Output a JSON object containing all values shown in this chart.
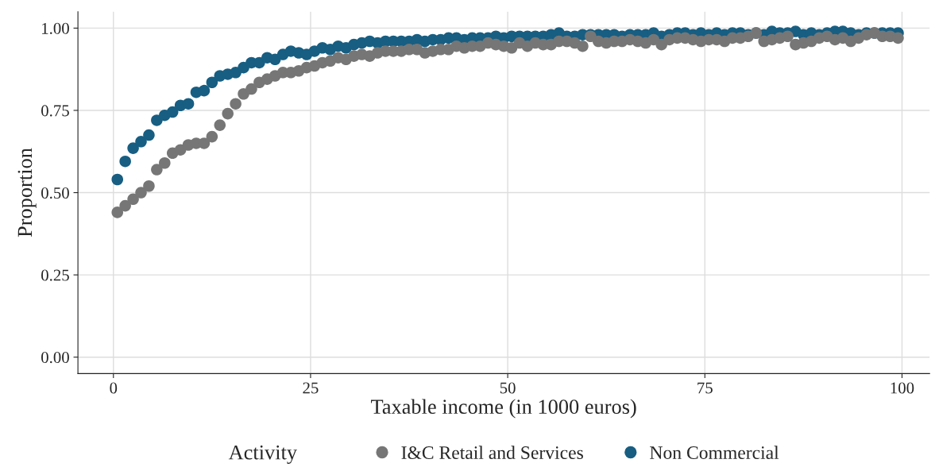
{
  "chart_data": {
    "type": "scatter",
    "xlabel": "Taxable income (in 1000 euros)",
    "ylabel": "Proportion",
    "legend_title": "Activity",
    "legend": "bottom",
    "grid": true,
    "marker": "circle",
    "x": [
      0.5,
      1.5,
      2.5,
      3.5,
      4.5,
      5.5,
      6.5,
      7.5,
      8.5,
      9.5,
      10.5,
      11.5,
      12.5,
      13.5,
      14.5,
      15.5,
      16.5,
      17.5,
      18.5,
      19.5,
      20.5,
      21.5,
      22.5,
      23.5,
      24.5,
      25.5,
      26.5,
      27.5,
      28.5,
      29.5,
      30.5,
      31.5,
      32.5,
      33.5,
      34.5,
      35.5,
      36.5,
      37.5,
      38.5,
      39.5,
      40.5,
      41.5,
      42.5,
      43.5,
      44.5,
      45.5,
      46.5,
      47.5,
      48.5,
      49.5,
      50.5,
      51.5,
      52.5,
      53.5,
      54.5,
      55.5,
      56.5,
      57.5,
      58.5,
      59.5,
      60.5,
      61.5,
      62.5,
      63.5,
      64.5,
      65.5,
      66.5,
      67.5,
      68.5,
      69.5,
      70.5,
      71.5,
      72.5,
      73.5,
      74.5,
      75.5,
      76.5,
      77.5,
      78.5,
      79.5,
      80.5,
      81.5,
      82.5,
      83.5,
      84.5,
      85.5,
      86.5,
      87.5,
      88.5,
      89.5,
      90.5,
      91.5,
      92.5,
      93.5,
      94.5,
      95.5,
      96.5,
      97.5,
      98.5,
      99.5
    ],
    "xlim": [
      -4.5,
      103.5
    ],
    "xticks": [
      0,
      25,
      50,
      75,
      100
    ],
    "ylim": [
      -0.05,
      1.05
    ],
    "yticks": [
      {
        "value": 0,
        "label": "0.00"
      },
      {
        "value": 0.25,
        "label": "0.25"
      },
      {
        "value": 0.5,
        "label": "0.50"
      },
      {
        "value": 0.75,
        "label": "0.75"
      },
      {
        "value": 1,
        "label": "1.00"
      }
    ],
    "series": [
      {
        "name": "I&C Retail and Services",
        "color": "#767676",
        "values": [
          0.44,
          0.46,
          0.48,
          0.5,
          0.52,
          0.57,
          0.59,
          0.62,
          0.63,
          0.645,
          0.65,
          0.65,
          0.67,
          0.705,
          0.74,
          0.77,
          0.8,
          0.815,
          0.835,
          0.845,
          0.855,
          0.865,
          0.865,
          0.87,
          0.88,
          0.885,
          0.895,
          0.9,
          0.91,
          0.905,
          0.915,
          0.92,
          0.915,
          0.925,
          0.93,
          0.93,
          0.93,
          0.935,
          0.935,
          0.925,
          0.93,
          0.935,
          0.935,
          0.945,
          0.94,
          0.945,
          0.945,
          0.955,
          0.95,
          0.945,
          0.94,
          0.955,
          0.945,
          0.955,
          0.95,
          0.95,
          0.96,
          0.96,
          0.955,
          0.945,
          0.975,
          0.96,
          0.955,
          0.96,
          0.96,
          0.965,
          0.96,
          0.955,
          0.965,
          0.95,
          0.965,
          0.97,
          0.97,
          0.965,
          0.96,
          0.965,
          0.965,
          0.96,
          0.97,
          0.97,
          0.975,
          0.985,
          0.96,
          0.965,
          0.97,
          0.975,
          0.95,
          0.955,
          0.96,
          0.97,
          0.975,
          0.965,
          0.97,
          0.96,
          0.97,
          0.98,
          0.985,
          0.975,
          0.975,
          0.97
        ]
      },
      {
        "name": "Non Commercial",
        "color": "#175e82",
        "values": [
          0.54,
          0.595,
          0.635,
          0.655,
          0.675,
          0.72,
          0.735,
          0.745,
          0.765,
          0.77,
          0.805,
          0.81,
          0.835,
          0.855,
          0.86,
          0.865,
          0.88,
          0.895,
          0.895,
          0.91,
          0.905,
          0.92,
          0.93,
          0.925,
          0.92,
          0.93,
          0.94,
          0.935,
          0.945,
          0.94,
          0.95,
          0.955,
          0.96,
          0.955,
          0.96,
          0.96,
          0.96,
          0.96,
          0.965,
          0.96,
          0.965,
          0.965,
          0.97,
          0.97,
          0.965,
          0.97,
          0.97,
          0.97,
          0.975,
          0.97,
          0.975,
          0.975,
          0.975,
          0.975,
          0.975,
          0.98,
          0.985,
          0.975,
          0.975,
          0.98,
          0.98,
          0.98,
          0.98,
          0.98,
          0.975,
          0.98,
          0.98,
          0.98,
          0.985,
          0.975,
          0.98,
          0.985,
          0.985,
          0.98,
          0.985,
          0.98,
          0.985,
          0.98,
          0.985,
          0.985,
          0.98,
          0.985,
          0.98,
          0.99,
          0.985,
          0.985,
          0.99,
          0.98,
          0.985,
          0.98,
          0.985,
          0.99,
          0.99,
          0.985,
          0.98,
          0.985,
          0.985,
          0.985,
          0.985,
          0.985
        ]
      }
    ]
  }
}
